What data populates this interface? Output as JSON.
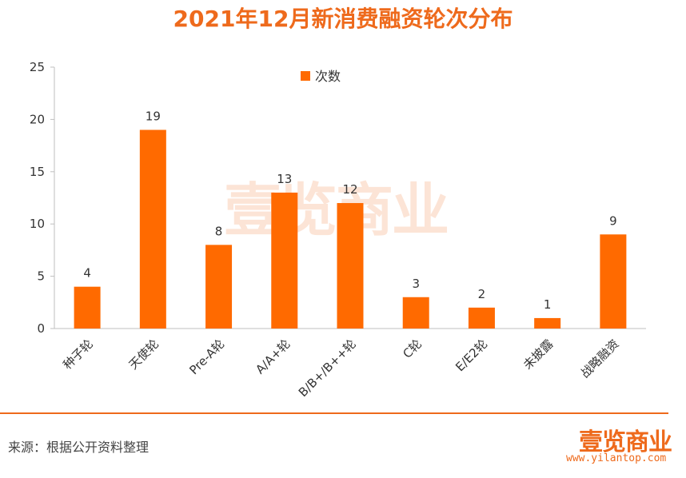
{
  "header": {
    "title": "2021年12月新消费融资轮次分布"
  },
  "chart_data": {
    "type": "bar",
    "title": "2021年12月新消费融资轮次分布",
    "categories": [
      "种子轮",
      "天使轮",
      "Pre-A轮",
      "A/A+轮",
      "B/B+/B++轮",
      "C轮",
      "E/E2轮",
      "未披露",
      "战略融资"
    ],
    "series": [
      {
        "name": "次数",
        "values": [
          4,
          19,
          8,
          13,
          12,
          3,
          2,
          1,
          9
        ]
      }
    ],
    "ylim": [
      0,
      25
    ],
    "yticks": [
      0,
      5,
      10,
      15,
      20,
      25
    ],
    "grid": false,
    "legend": "top-center",
    "colors": {
      "bar": "#ff6a00",
      "axis": "#bfbfbf"
    }
  },
  "footer": {
    "source": "来源：根据公开资料整理",
    "brand_logo": "壹览商业",
    "brand_url": "www.yilantop.com"
  },
  "watermark": "壹览商业"
}
